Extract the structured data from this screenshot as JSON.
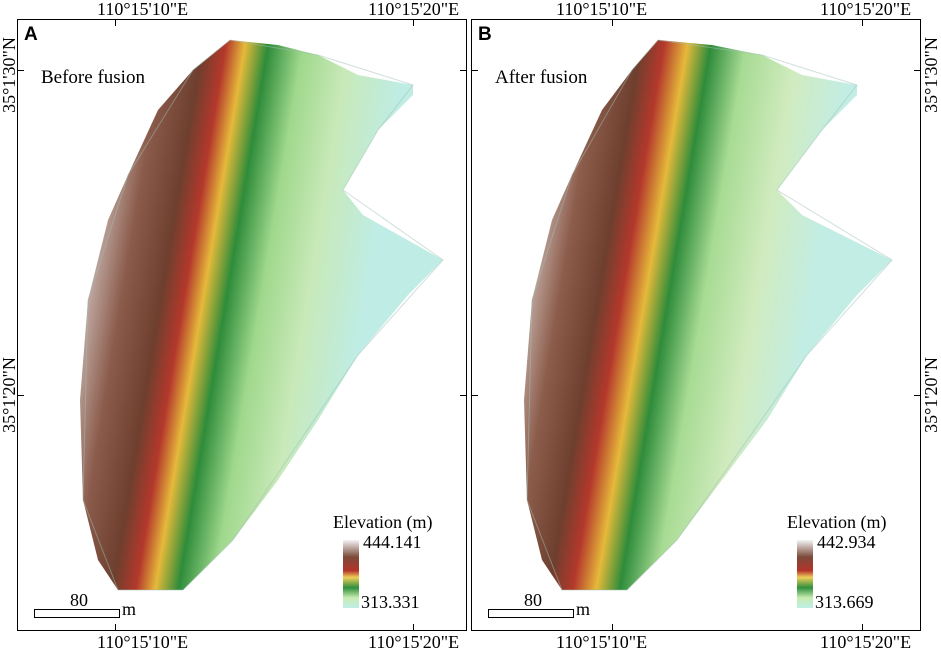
{
  "axes": {
    "top_left_lon": "110°15'10\"E",
    "top_right_lon": "110°15'20\"E",
    "bottom_left_lon": "110°15'10\"E",
    "bottom_right_lon": "110°15'20\"E",
    "upper_lat": "35°1'30\"N",
    "lower_lat": "35°1'20\"N"
  },
  "panels": [
    {
      "letter": "A",
      "subtitle": "Before fusion",
      "legend_title": "Elevation (m)",
      "elev_max": "444.141",
      "elev_min": "313.331",
      "scale_value": "80",
      "scale_unit": "m"
    },
    {
      "letter": "B",
      "subtitle": "After fusion",
      "legend_title": "Elevation (m)",
      "elev_max": "442.934",
      "elev_min": "313.669",
      "scale_value": "80",
      "scale_unit": "m"
    }
  ],
  "colors": {
    "high": "#f2f2f2",
    "brown": "#7a4a3a",
    "red": "#b3332a",
    "yellow": "#e8c23a",
    "green": "#2f8f3c",
    "light_green": "#b7e3a0",
    "low": "#bfeee6"
  }
}
